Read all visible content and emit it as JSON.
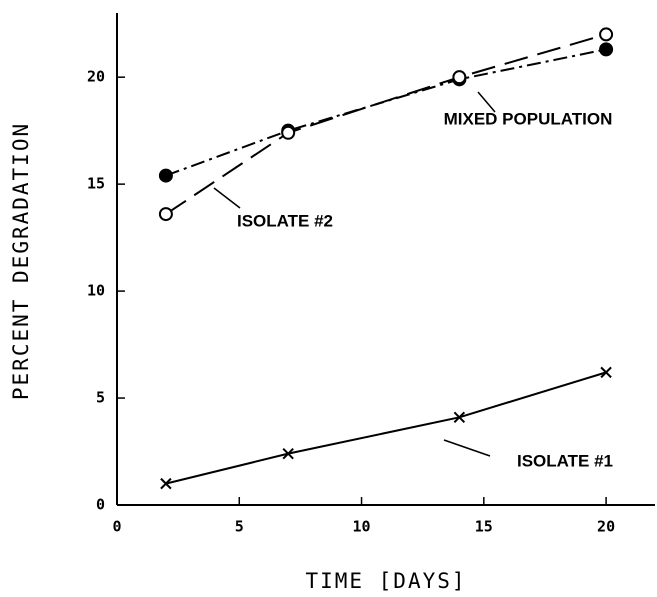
{
  "chart_data": {
    "type": "line",
    "xlabel": "TIME [DAYS]",
    "ylabel": "PERCENT DEGRADATION",
    "x": [
      2,
      7,
      14,
      20
    ],
    "series": [
      {
        "name": "MIXED POPULATION",
        "color": "#000000",
        "marker": "filled-circle",
        "line_style": "dashdot",
        "values": [
          15.4,
          17.5,
          19.9,
          21.3
        ]
      },
      {
        "name": "ISOLATE #2",
        "color": "#000000",
        "marker": "open-circle",
        "line_style": "dashed",
        "values": [
          13.6,
          17.4,
          20.0,
          22.0
        ]
      },
      {
        "name": "ISOLATE #1",
        "color": "#000000",
        "marker": "x",
        "line_style": "solid",
        "values": [
          1.0,
          2.4,
          4.1,
          6.2
        ]
      }
    ],
    "xlim": [
      0,
      22
    ],
    "ylim": [
      0,
      23
    ],
    "xticks": [
      0,
      5,
      10,
      15,
      20
    ],
    "yticks": [
      0,
      5,
      10,
      15,
      20
    ],
    "grid": false
  }
}
